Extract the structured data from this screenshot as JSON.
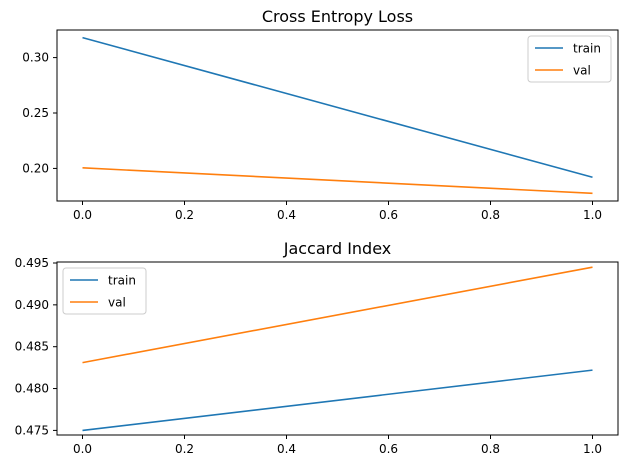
{
  "chart_data": [
    {
      "type": "line",
      "title": "Cross Entropy Loss",
      "xlabel": "",
      "ylabel": "",
      "xlim": [
        -0.05,
        1.05
      ],
      "ylim": [
        0.1706,
        0.3249
      ],
      "xticks": [
        "0.0",
        "0.2",
        "0.4",
        "0.6",
        "0.8",
        "1.0"
      ],
      "yticks": [
        "0.20",
        "0.25",
        "0.30"
      ],
      "grid": false,
      "legend": "top-right",
      "series": [
        {
          "name": "train",
          "color": "#1f77b4",
          "x": [
            0,
            1
          ],
          "y": [
            0.318,
            0.192
          ]
        },
        {
          "name": "val",
          "color": "#ff7f0e",
          "x": [
            0,
            1
          ],
          "y": [
            0.2005,
            0.1775
          ]
        }
      ]
    },
    {
      "type": "line",
      "title": "Jaccard Index",
      "xlabel": "",
      "ylabel": "",
      "xlim": [
        -0.05,
        1.05
      ],
      "ylim": [
        0.47445,
        0.49512
      ],
      "xticks": [
        "0.0",
        "0.2",
        "0.4",
        "0.6",
        "0.8",
        "1.0"
      ],
      "yticks": [
        "0.475",
        "0.480",
        "0.485",
        "0.490",
        "0.495"
      ],
      "grid": false,
      "legend": "top-left",
      "series": [
        {
          "name": "train",
          "color": "#1f77b4",
          "x": [
            0,
            1
          ],
          "y": [
            0.475,
            0.4822
          ]
        },
        {
          "name": "val",
          "color": "#ff7f0e",
          "x": [
            0,
            1
          ],
          "y": [
            0.4831,
            0.4945
          ]
        }
      ]
    }
  ]
}
